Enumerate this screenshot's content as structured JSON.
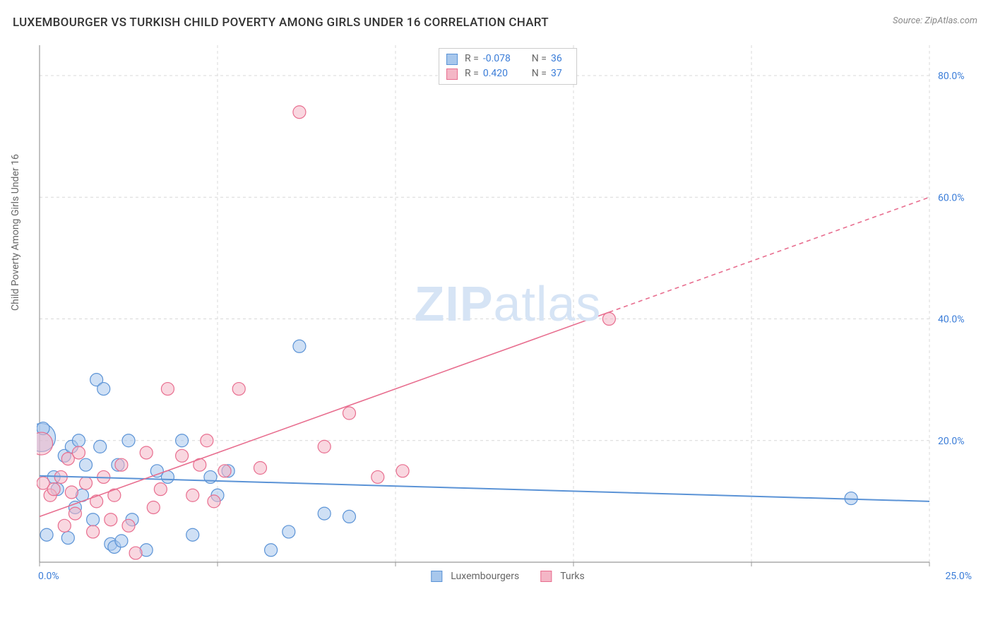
{
  "title": "LUXEMBOURGER VS TURKISH CHILD POVERTY AMONG GIRLS UNDER 16 CORRELATION CHART",
  "source": "Source: ZipAtlas.com",
  "y_axis_label": "Child Poverty Among Girls Under 16",
  "watermark": {
    "bold": "ZIP",
    "rest": "atlas"
  },
  "chart": {
    "type": "scatter",
    "xlim": [
      0,
      25
    ],
    "ylim": [
      0,
      85
    ],
    "x_ticks": [
      0,
      5,
      10,
      15,
      20,
      25
    ],
    "x_tick_labels": [
      "0.0%",
      "",
      "",
      "",
      "",
      "25.0%"
    ],
    "y_ticks": [
      20,
      40,
      60,
      80
    ],
    "y_tick_labels": [
      "20.0%",
      "40.0%",
      "60.0%",
      "80.0%"
    ],
    "y_tick_side": "right",
    "grid_color": "#d8d8d8",
    "grid_dash": "4,4",
    "axis_color": "#999999",
    "background_color": "#ffffff",
    "tick_label_color": "#3b7dd8",
    "tick_label_fontsize": 14,
    "series": [
      {
        "name": "Luxembourgers",
        "fill": "#a7c7ec",
        "stroke": "#5b93d6",
        "fill_opacity": 0.55,
        "marker_stroke_width": 1.2,
        "default_r": 9,
        "points": [
          {
            "x": 0.05,
            "y": 20.5,
            "r": 20
          },
          {
            "x": 0.1,
            "y": 22
          },
          {
            "x": 0.2,
            "y": 4.5
          },
          {
            "x": 0.4,
            "y": 14
          },
          {
            "x": 0.5,
            "y": 12
          },
          {
            "x": 0.7,
            "y": 17.5
          },
          {
            "x": 0.8,
            "y": 4
          },
          {
            "x": 0.9,
            "y": 19
          },
          {
            "x": 1.0,
            "y": 9
          },
          {
            "x": 1.1,
            "y": 20
          },
          {
            "x": 1.2,
            "y": 11
          },
          {
            "x": 1.3,
            "y": 16
          },
          {
            "x": 1.5,
            "y": 7
          },
          {
            "x": 1.6,
            "y": 30
          },
          {
            "x": 1.7,
            "y": 19
          },
          {
            "x": 1.8,
            "y": 28.5
          },
          {
            "x": 2.0,
            "y": 3
          },
          {
            "x": 2.1,
            "y": 2.5
          },
          {
            "x": 2.2,
            "y": 16
          },
          {
            "x": 2.3,
            "y": 3.5
          },
          {
            "x": 2.5,
            "y": 20
          },
          {
            "x": 2.6,
            "y": 7
          },
          {
            "x": 3.0,
            "y": 2
          },
          {
            "x": 3.3,
            "y": 15
          },
          {
            "x": 3.6,
            "y": 14
          },
          {
            "x": 4.0,
            "y": 20
          },
          {
            "x": 4.3,
            "y": 4.5
          },
          {
            "x": 4.8,
            "y": 14
          },
          {
            "x": 5.0,
            "y": 11
          },
          {
            "x": 5.3,
            "y": 15
          },
          {
            "x": 6.5,
            "y": 2
          },
          {
            "x": 7.0,
            "y": 5
          },
          {
            "x": 7.3,
            "y": 35.5
          },
          {
            "x": 8.0,
            "y": 8
          },
          {
            "x": 8.7,
            "y": 7.5
          },
          {
            "x": 22.8,
            "y": 10.5
          }
        ],
        "regression": {
          "x1": 0,
          "y1": 14.2,
          "x2": 25,
          "y2": 10.0,
          "dash": "none",
          "width": 2
        }
      },
      {
        "name": "Turks",
        "fill": "#f4b6c6",
        "stroke": "#e86e8f",
        "fill_opacity": 0.55,
        "marker_stroke_width": 1.2,
        "default_r": 9,
        "points": [
          {
            "x": 0.05,
            "y": 19.5,
            "r": 16
          },
          {
            "x": 0.1,
            "y": 13
          },
          {
            "x": 0.3,
            "y": 11
          },
          {
            "x": 0.4,
            "y": 12
          },
          {
            "x": 0.6,
            "y": 14
          },
          {
            "x": 0.7,
            "y": 6
          },
          {
            "x": 0.8,
            "y": 17
          },
          {
            "x": 0.9,
            "y": 11.5
          },
          {
            "x": 1.0,
            "y": 8
          },
          {
            "x": 1.1,
            "y": 18
          },
          {
            "x": 1.3,
            "y": 13
          },
          {
            "x": 1.5,
            "y": 5
          },
          {
            "x": 1.6,
            "y": 10
          },
          {
            "x": 1.8,
            "y": 14
          },
          {
            "x": 2.0,
            "y": 7
          },
          {
            "x": 2.1,
            "y": 11
          },
          {
            "x": 2.3,
            "y": 16
          },
          {
            "x": 2.5,
            "y": 6
          },
          {
            "x": 2.7,
            "y": 1.5
          },
          {
            "x": 3.0,
            "y": 18
          },
          {
            "x": 3.2,
            "y": 9
          },
          {
            "x": 3.4,
            "y": 12
          },
          {
            "x": 3.6,
            "y": 28.5
          },
          {
            "x": 4.0,
            "y": 17.5
          },
          {
            "x": 4.3,
            "y": 11
          },
          {
            "x": 4.5,
            "y": 16
          },
          {
            "x": 4.7,
            "y": 20
          },
          {
            "x": 4.9,
            "y": 10
          },
          {
            "x": 5.2,
            "y": 15
          },
          {
            "x": 5.6,
            "y": 28.5
          },
          {
            "x": 6.2,
            "y": 15.5
          },
          {
            "x": 7.3,
            "y": 74
          },
          {
            "x": 8.0,
            "y": 19
          },
          {
            "x": 8.7,
            "y": 24.5
          },
          {
            "x": 9.5,
            "y": 14
          },
          {
            "x": 10.2,
            "y": 15
          },
          {
            "x": 16.0,
            "y": 40
          }
        ],
        "regression": {
          "x1": 0,
          "y1": 7.5,
          "solid_end_x": 16.0,
          "solid_end_y": 41.1,
          "x2": 25,
          "y2": 60.0,
          "width": 1.6,
          "dash_pattern": "6,5"
        }
      }
    ]
  },
  "stats_legend": {
    "rows": [
      {
        "swatch_fill": "#a7c7ec",
        "swatch_stroke": "#5b93d6",
        "r_label": "R =",
        "r_value": "-0.078",
        "n_label": "N =",
        "n_value": "36"
      },
      {
        "swatch_fill": "#f4b6c6",
        "swatch_stroke": "#e86e8f",
        "r_label": "R =",
        "r_value": " 0.420",
        "n_label": "N =",
        "n_value": "37"
      }
    ]
  },
  "bottom_legend": {
    "items": [
      {
        "swatch_fill": "#a7c7ec",
        "swatch_stroke": "#5b93d6",
        "label": "Luxembourgers"
      },
      {
        "swatch_fill": "#f4b6c6",
        "swatch_stroke": "#e86e8f",
        "label": "Turks"
      }
    ]
  }
}
